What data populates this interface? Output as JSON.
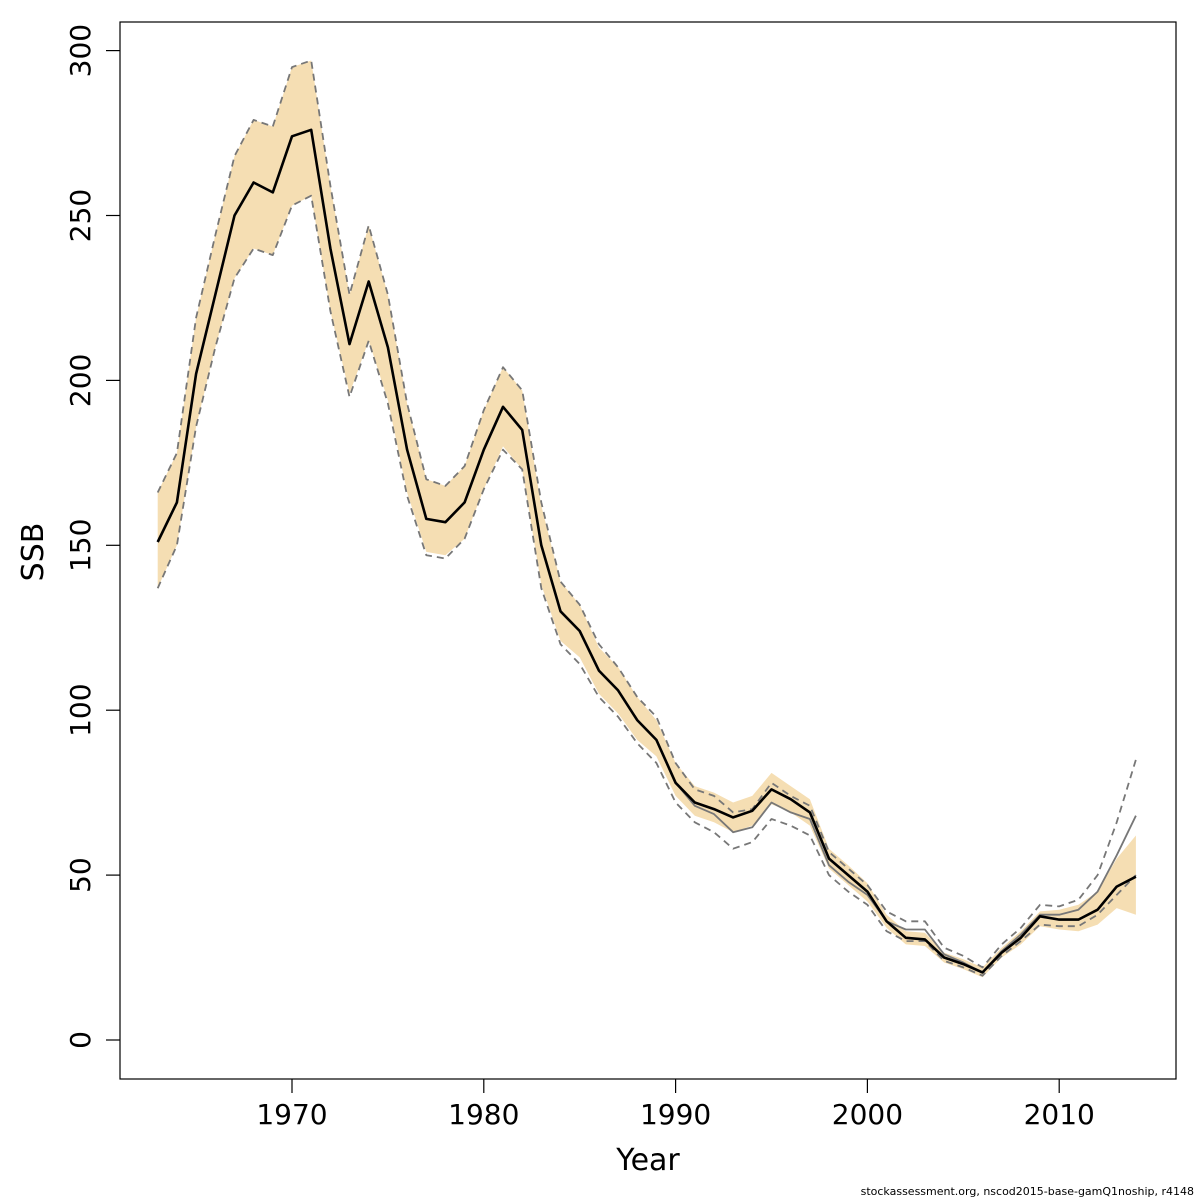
{
  "chart_data": {
    "type": "line",
    "title": "",
    "xlabel": "Year",
    "ylabel": "SSB",
    "xlim": [
      1962,
      2016
    ],
    "ylim": [
      0,
      300
    ],
    "x_ticks": [
      "1970",
      "1980",
      "1990",
      "2000",
      "2010"
    ],
    "y_ticks": [
      "0",
      "50",
      "100",
      "150",
      "200",
      "250",
      "300"
    ],
    "grid": false,
    "legend": "none",
    "colors": {
      "ci_band": "#f5deb3",
      "estimate": "#000000",
      "previous": "#777777"
    },
    "years": [
      1963,
      1964,
      1965,
      1966,
      1967,
      1968,
      1969,
      1970,
      1971,
      1972,
      1973,
      1974,
      1975,
      1976,
      1977,
      1978,
      1979,
      1980,
      1981,
      1982,
      1983,
      1984,
      1985,
      1986,
      1987,
      1988,
      1989,
      1990,
      1991,
      1992,
      1993,
      1994,
      1995,
      1996,
      1997,
      1998,
      1999,
      2000,
      2001,
      2002,
      2003,
      2004,
      2005,
      2006,
      2007,
      2008,
      2009,
      2010,
      2011,
      2012,
      2013,
      2014
    ],
    "series": [
      {
        "role": "estimate",
        "values": [
          151,
          163,
          202,
          226,
          250,
          260,
          257,
          274,
          276,
          240,
          211,
          230,
          210,
          179,
          158,
          157,
          163,
          179,
          192,
          185,
          150,
          130,
          124,
          112,
          106,
          97,
          91,
          78,
          72,
          70,
          67.5,
          69.5,
          76,
          73,
          69,
          55,
          50,
          45,
          36,
          31,
          30.5,
          25,
          23,
          20.5,
          26.5,
          31,
          37.5,
          36.5,
          36.5,
          39.5,
          46.5,
          49.5
        ]
      },
      {
        "role": "ci-lower",
        "values": [
          137,
          150,
          186,
          210,
          231,
          240,
          238,
          253,
          256,
          221,
          196,
          212,
          194,
          166,
          148,
          147,
          152,
          167,
          180,
          173,
          138,
          121,
          116,
          105,
          99,
          91,
          86,
          74,
          68,
          66,
          63,
          65,
          71.5,
          69,
          65,
          52,
          47,
          42,
          34,
          29,
          28.5,
          23.5,
          21.5,
          19,
          25,
          29,
          34.5,
          33.5,
          33,
          35,
          40,
          38
        ]
      },
      {
        "role": "ci-upper",
        "values": [
          166,
          178,
          219,
          244,
          268,
          279,
          277,
          295,
          297,
          259,
          226,
          247,
          226,
          193,
          170,
          168,
          174,
          191,
          204,
          197,
          162,
          139,
          132,
          119,
          113,
          104,
          97,
          84,
          77,
          75,
          72,
          74,
          81,
          77,
          73,
          58,
          53,
          47.5,
          38,
          33,
          32.5,
          26.5,
          24.5,
          22,
          28,
          33,
          39,
          39.5,
          41,
          45,
          55,
          62
        ]
      },
      {
        "role": "previous-estimate",
        "values": [
          151,
          163,
          202,
          226,
          250,
          260,
          257,
          274,
          276,
          240,
          211,
          230,
          210,
          179,
          158,
          157,
          163,
          179,
          192,
          185,
          150,
          130,
          124,
          112,
          106,
          97,
          91,
          78,
          71,
          68.5,
          63,
          64.5,
          72,
          69,
          67,
          53,
          48,
          44,
          36,
          33.5,
          33.5,
          26,
          23.5,
          20.5,
          27,
          32,
          38,
          38,
          39.5,
          45,
          56,
          68
        ]
      },
      {
        "role": "previous-ci-lower",
        "values": [
          137,
          150,
          186,
          210,
          231,
          240,
          238,
          253,
          256,
          221,
          195,
          212,
          193,
          165,
          147,
          146,
          152,
          167,
          179,
          173,
          137,
          120,
          114,
          104,
          98,
          90,
          84,
          72,
          66,
          63,
          58,
          60,
          67,
          65,
          62,
          50,
          45,
          41,
          33,
          30,
          30,
          24,
          22,
          19.5,
          25.5,
          30,
          35,
          34.5,
          34.5,
          38,
          44,
          50
        ]
      },
      {
        "role": "previous-ci-upper",
        "values": [
          166,
          178,
          219,
          244,
          268,
          279,
          277,
          295,
          297,
          259,
          226,
          247,
          226,
          193,
          170,
          168,
          174,
          191,
          204,
          197,
          163,
          139,
          132,
          120,
          113,
          104,
          98,
          84,
          76,
          74,
          69,
          70,
          78,
          74,
          71,
          57,
          52,
          47,
          39,
          36,
          36,
          28,
          25.5,
          22,
          29,
          34,
          41,
          40.5,
          42.5,
          50,
          66,
          85
        ]
      }
    ]
  },
  "footer": {
    "source_note": "stockassessment.org, nscod2015-base-gamQ1noship, r4148"
  }
}
